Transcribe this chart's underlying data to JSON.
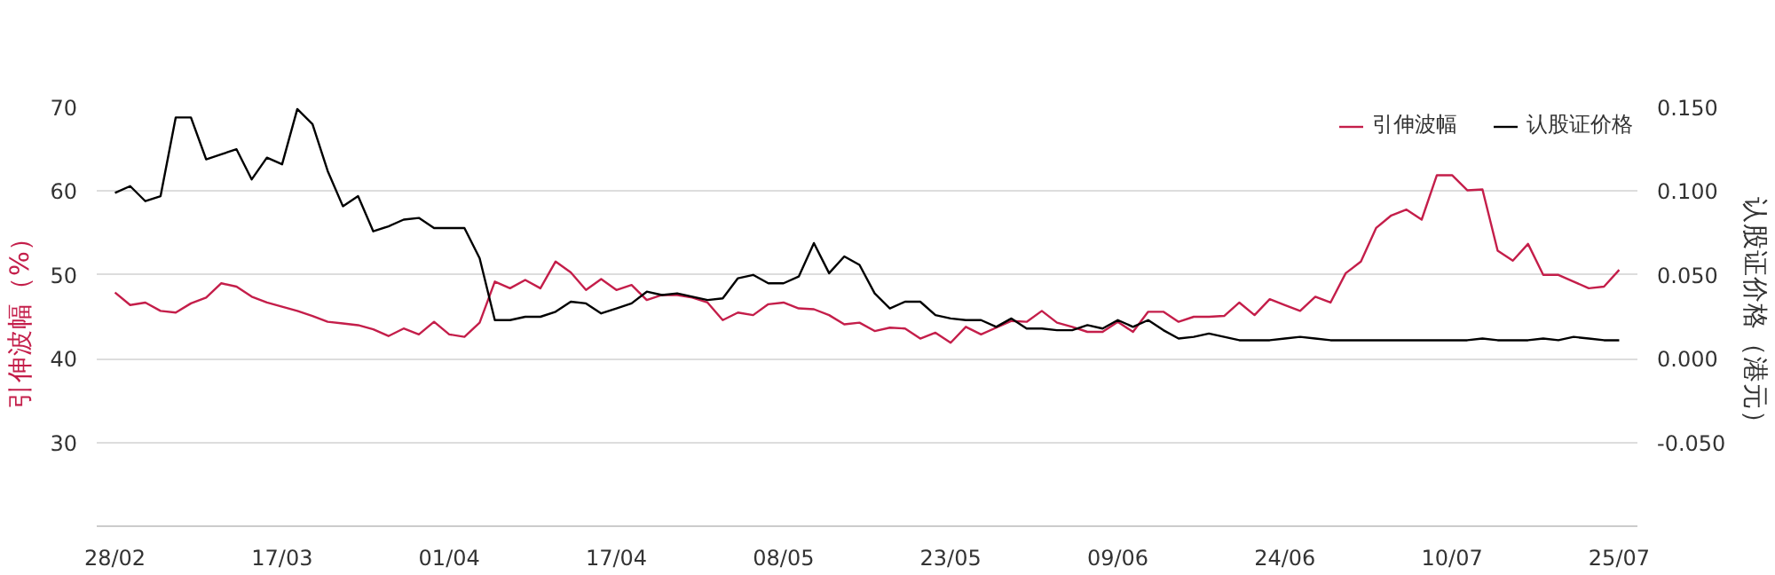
{
  "chart_data": {
    "type": "line",
    "categories": [
      "28/02",
      null,
      null,
      null,
      null,
      null,
      null,
      null,
      null,
      null,
      null,
      "17/03",
      null,
      null,
      null,
      null,
      null,
      null,
      null,
      null,
      null,
      null,
      "01/04",
      null,
      null,
      null,
      null,
      null,
      null,
      null,
      null,
      null,
      null,
      "17/04",
      null,
      null,
      null,
      null,
      null,
      null,
      null,
      null,
      null,
      null,
      "08/05",
      null,
      null,
      null,
      null,
      null,
      null,
      null,
      null,
      null,
      null,
      "23/05",
      null,
      null,
      null,
      null,
      null,
      null,
      null,
      null,
      null,
      null,
      "09/06",
      null,
      null,
      null,
      null,
      null,
      null,
      null,
      null,
      null,
      null,
      "24/06",
      null,
      null,
      null,
      null,
      null,
      null,
      null,
      null,
      null,
      null,
      "10/07",
      null,
      null,
      null,
      null,
      null,
      null,
      null,
      null,
      null,
      null,
      "25/07"
    ],
    "series": [
      {
        "name": "引伸波幅",
        "color": "#c41e4a",
        "values": [
          47.9,
          46.4,
          46.7,
          45.7,
          45.5,
          46.6,
          47.3,
          49.0,
          48.6,
          47.4,
          46.7,
          46.2,
          45.7,
          45.1,
          44.4,
          44.2,
          44.0,
          43.5,
          42.7,
          43.6,
          42.9,
          44.4,
          42.9,
          42.6,
          44.3,
          49.2,
          48.4,
          49.4,
          48.4,
          51.6,
          50.3,
          48.2,
          49.5,
          48.2,
          48.8,
          47.0,
          47.6,
          47.6,
          47.3,
          46.7,
          44.6,
          45.5,
          45.2,
          46.5,
          46.7,
          46.0,
          45.9,
          45.2,
          44.1,
          44.3,
          43.3,
          43.7,
          43.6,
          42.4,
          43.1,
          41.9,
          43.8,
          42.9,
          43.7,
          44.5,
          44.4,
          45.7,
          44.3,
          43.8,
          43.2,
          43.2,
          44.4,
          43.2,
          45.6,
          45.6,
          44.4,
          45.0,
          45.0,
          45.1,
          46.7,
          45.2,
          47.1,
          46.4,
          45.7,
          47.4,
          46.7,
          50.2,
          51.6,
          55.6,
          57.1,
          57.8,
          56.6,
          61.9,
          61.9,
          60.1,
          60.2,
          52.9,
          51.7,
          53.7,
          50.0,
          50.0,
          49.2,
          48.4,
          48.6,
          50.6
        ]
      },
      {
        "name": "认股证价格",
        "color": "#000000",
        "axis": "y2",
        "values": [
          0.099,
          0.103,
          0.094,
          0.097,
          0.144,
          0.144,
          0.119,
          0.122,
          0.125,
          0.107,
          0.12,
          0.116,
          0.149,
          0.14,
          0.112,
          0.091,
          0.097,
          0.076,
          0.079,
          0.083,
          0.084,
          0.078,
          0.078,
          0.078,
          0.06,
          0.023,
          0.023,
          0.025,
          0.025,
          0.028,
          0.034,
          0.033,
          0.027,
          0.03,
          0.033,
          0.04,
          0.038,
          0.039,
          0.037,
          0.035,
          0.036,
          0.048,
          0.05,
          0.045,
          0.045,
          0.049,
          0.069,
          0.051,
          0.061,
          0.056,
          0.039,
          0.03,
          0.034,
          0.034,
          0.026,
          0.024,
          0.023,
          0.023,
          0.019,
          0.024,
          0.018,
          0.018,
          0.017,
          0.017,
          0.02,
          0.018,
          0.023,
          0.019,
          0.023,
          0.017,
          0.012,
          0.013,
          0.015,
          0.013,
          0.011,
          0.011,
          0.011,
          0.012,
          0.013,
          0.012,
          0.011,
          0.011,
          0.011,
          0.011,
          0.011,
          0.011,
          0.011,
          0.011,
          0.011,
          0.011,
          0.012,
          0.011,
          0.011,
          0.011,
          0.012,
          0.011,
          0.013,
          0.012,
          0.011,
          0.011
        ]
      }
    ],
    "ylabel": "引伸波幅（%）",
    "y2label": "认股证价格（港元）",
    "ylim": [
      20,
      70
    ],
    "yticks": [
      30,
      40,
      50,
      60,
      70
    ],
    "y2lim": [
      -0.1,
      0.15
    ],
    "y2ticks": [
      {
        "value": -0.05,
        "label": "-0.050"
      },
      {
        "value": 0,
        "label": "0.000"
      },
      {
        "value": 0.05,
        "label": "0.050"
      },
      {
        "value": 0.1,
        "label": "0.100"
      },
      {
        "value": 0.15,
        "label": "0.150"
      }
    ],
    "grid": "y",
    "legend": "top right",
    "line_style": "solid"
  }
}
